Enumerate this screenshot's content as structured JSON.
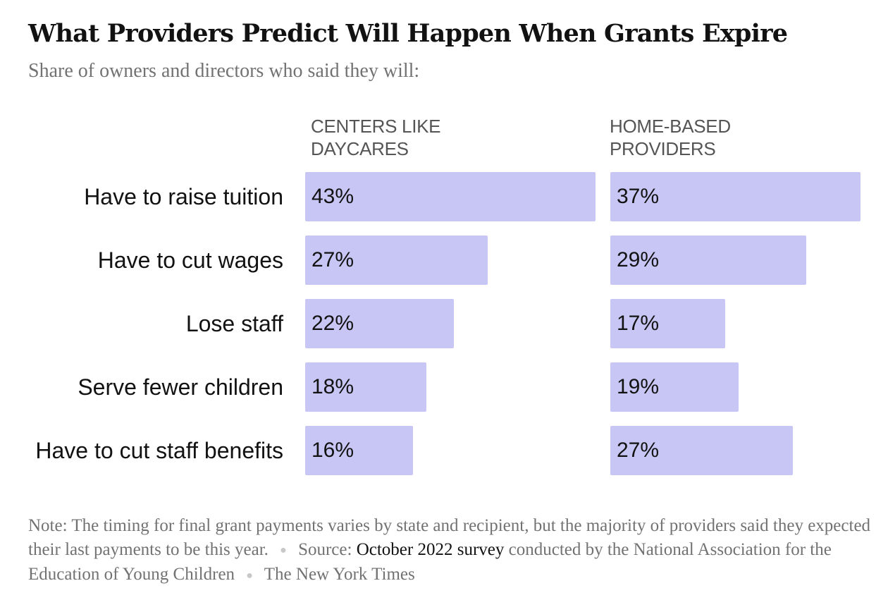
{
  "title": "What Providers Predict Will Happen When Grants Expire",
  "subtitle": "Share of owners and directors who said they will:",
  "chart_data": {
    "type": "bar",
    "orientation": "horizontal",
    "categories": [
      "Have to raise tuition",
      "Have to cut wages",
      "Lose staff",
      "Serve fewer children",
      "Have to cut staff benefits"
    ],
    "series": [
      {
        "name": "CENTERS LIKE DAYCARES",
        "name_lines": [
          "CENTERS LIKE",
          "DAYCARES"
        ],
        "values": [
          43,
          27,
          22,
          18,
          16
        ]
      },
      {
        "name": "HOME-BASED PROVIDERS",
        "name_lines": [
          "HOME-BASED",
          "PROVIDERS"
        ],
        "values": [
          37,
          29,
          17,
          19,
          27
        ]
      }
    ],
    "value_suffix": "%",
    "bar_color": "#c8c6f4",
    "grid": false,
    "legend": "none"
  },
  "footer": {
    "note_label": "Note:",
    "note_text": "The timing for final grant payments varies by state and recipient, but the majority of providers said they expected their last payments to be this year.",
    "source_label": "Source:",
    "source_link": "October 2022 survey",
    "source_text": "conducted by the National Association for the Education of Young Children",
    "credit": "The New York Times"
  }
}
